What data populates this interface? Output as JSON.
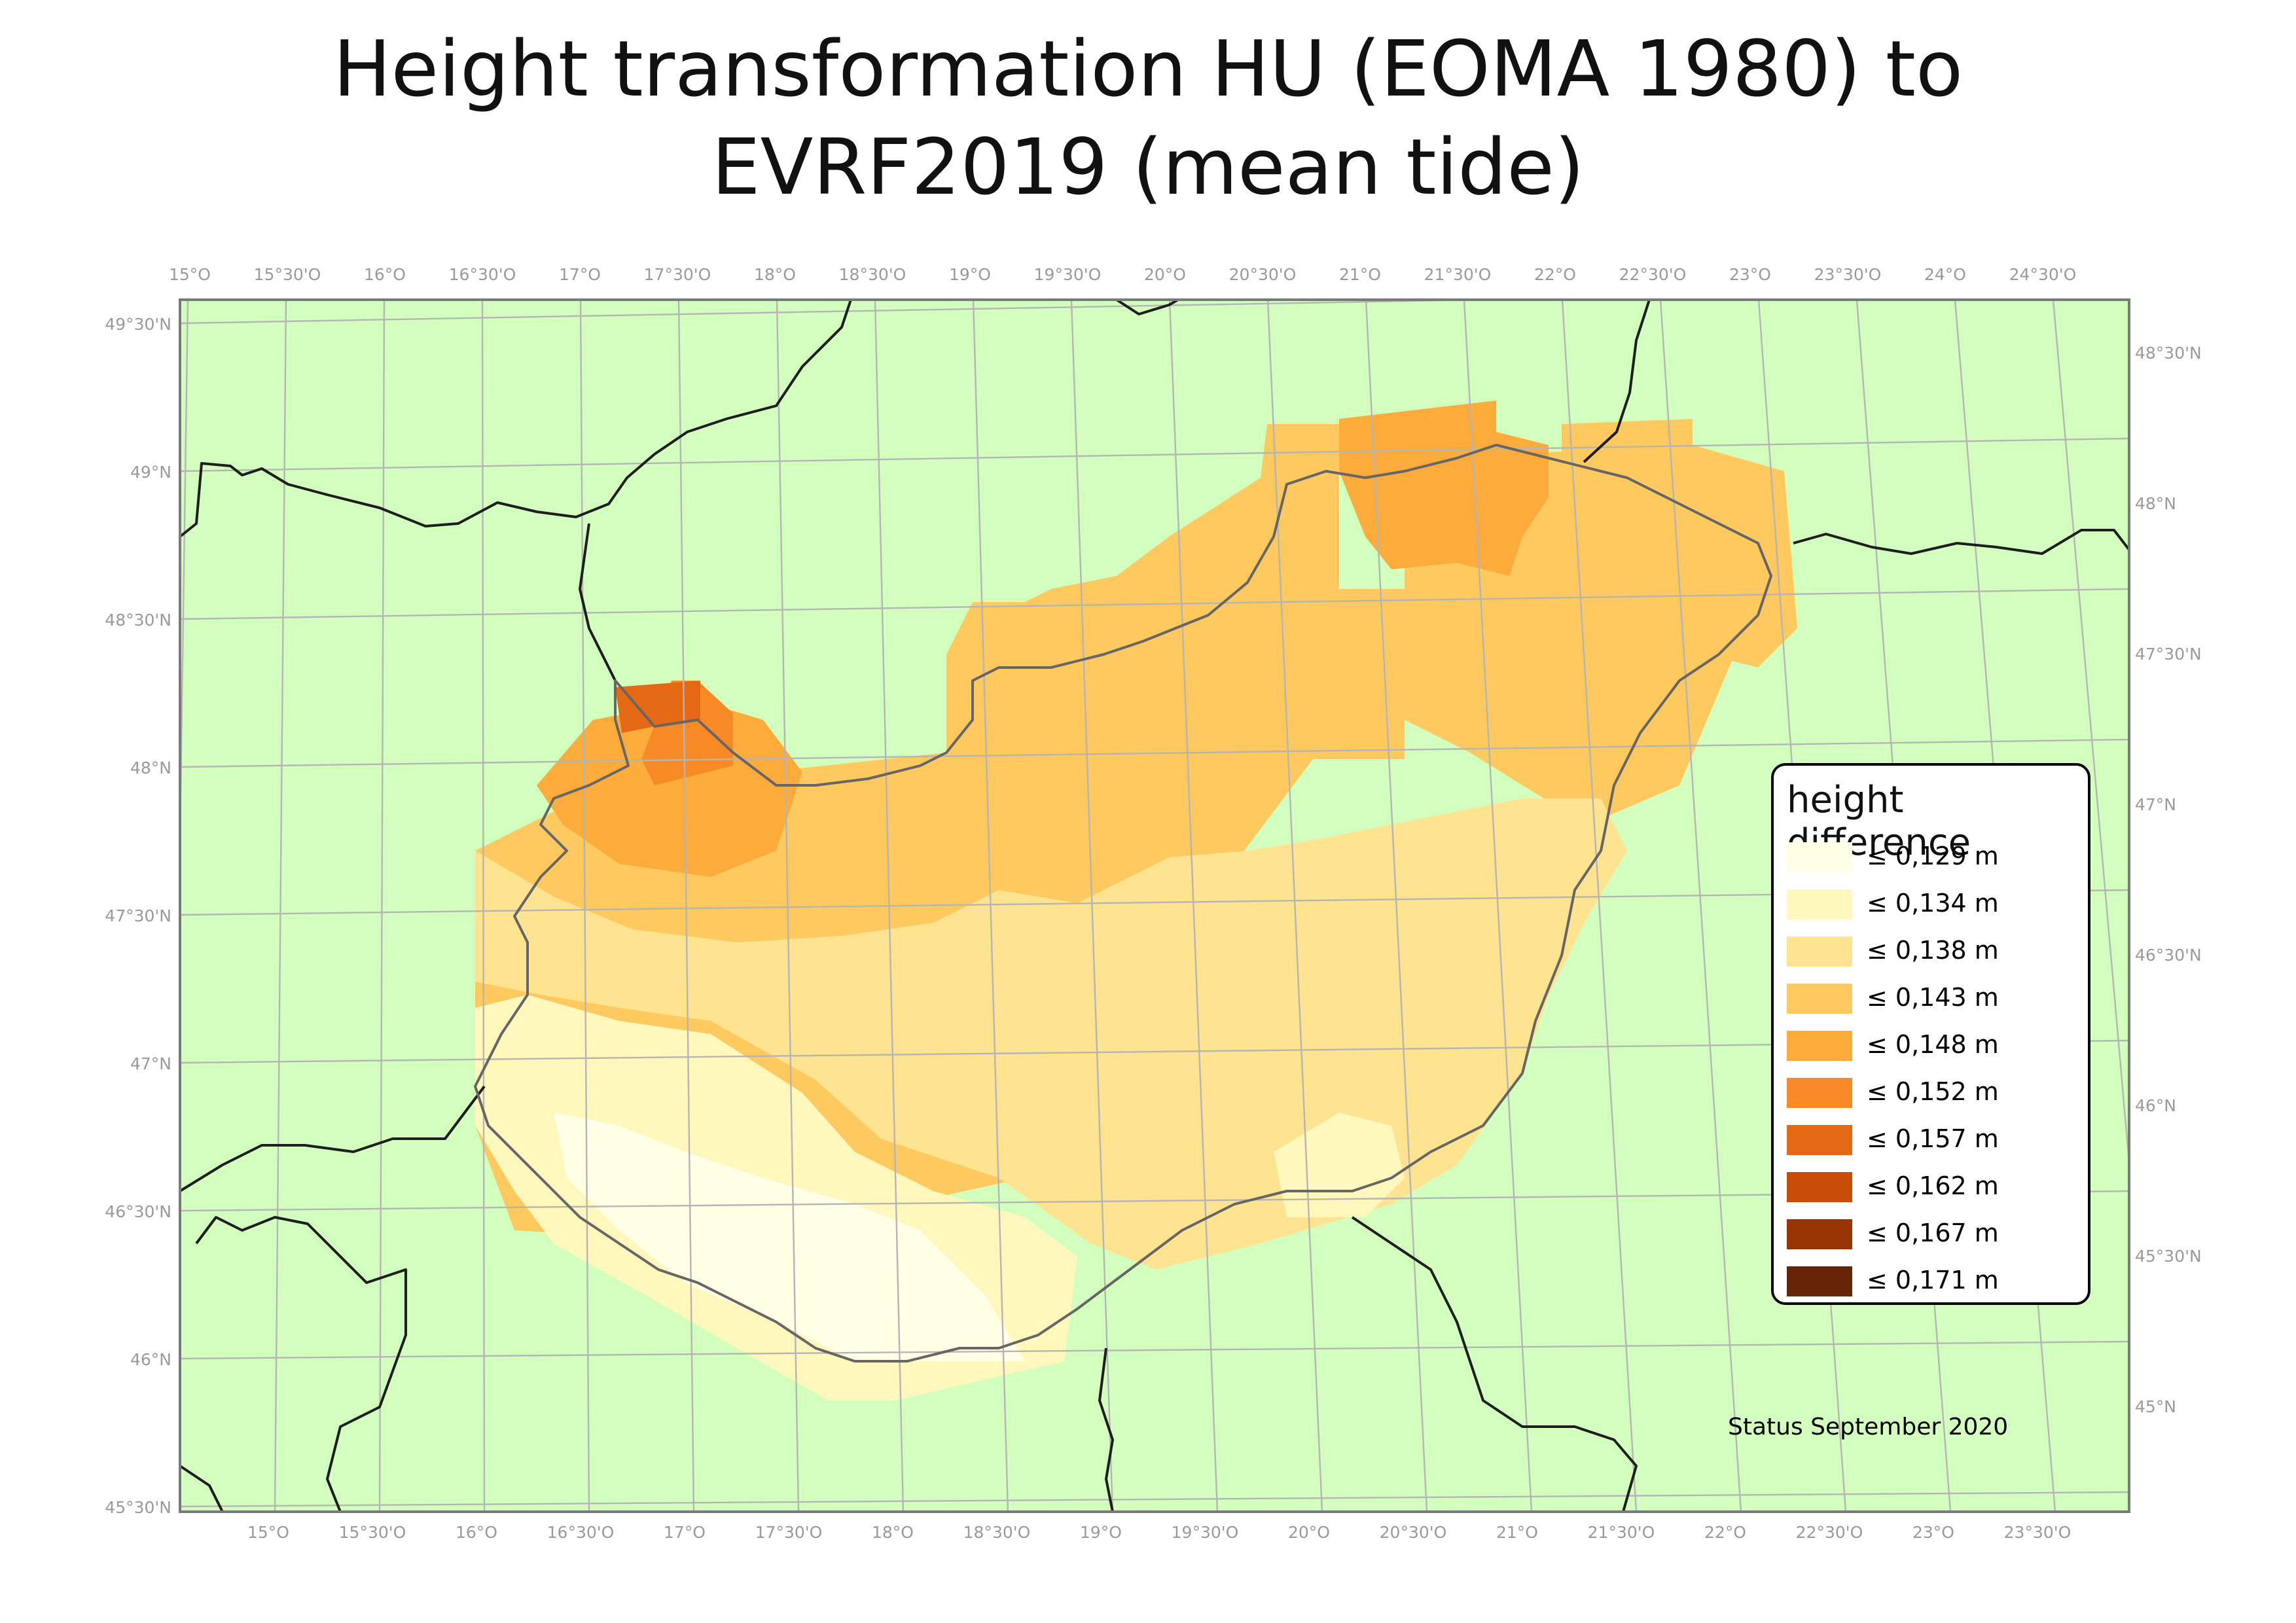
{
  "title_line1": "Height transformation HU (EOMA 1980) to",
  "title_line2": "EVRF2019 (mean tide)",
  "top_ticks": [
    "15°O",
    "15°30'O",
    "16°O",
    "16°30'O",
    "17°O",
    "17°30'O",
    "18°O",
    "18°30'O",
    "19°O",
    "19°30'O",
    "20°O",
    "20°30'O",
    "21°O",
    "21°30'O",
    "22°O",
    "22°30'O",
    "23°O",
    "23°30'O",
    "24°O",
    "24°30'O"
  ],
  "bottom_ticks": [
    "15°O",
    "15°30'O",
    "16°O",
    "16°30'O",
    "17°O",
    "17°30'O",
    "18°O",
    "18°30'O",
    "19°O",
    "19°30'O",
    "20°O",
    "20°30'O",
    "21°O",
    "21°30'O",
    "22°O",
    "22°30'O",
    "23°O",
    "23°30'O"
  ],
  "left_ticks": [
    "49°30'N",
    "49°N",
    "48°30'N",
    "48°N",
    "47°30'N",
    "47°N",
    "46°30'N",
    "46°N",
    "45°30'N"
  ],
  "right_ticks": [
    "48°30'N",
    "48°N",
    "47°30'N",
    "47°N",
    "46°30'N",
    "46°N",
    "45°30'N",
    "45°N"
  ],
  "legend": {
    "title": "height difference",
    "items": [
      {
        "label": "≤ 0,129 m",
        "color": "#ffffe5"
      },
      {
        "label": "≤ 0,134 m",
        "color": "#fff7bc"
      },
      {
        "label": "≤ 0,138 m",
        "color": "#fee391"
      },
      {
        "label": "≤ 0,143 m",
        "color": "#fec95e"
      },
      {
        "label": "≤ 0,148 m",
        "color": "#fdab3b"
      },
      {
        "label": "≤ 0,152 m",
        "color": "#f88a25"
      },
      {
        "label": "≤ 0,157 m",
        "color": "#e56914"
      },
      {
        "label": "≤ 0,162 m",
        "color": "#c74c06"
      },
      {
        "label": "≤ 0,167 m",
        "color": "#993404"
      },
      {
        "label": "≤ 0,171 m",
        "color": "#662506"
      }
    ]
  },
  "status": "Status September 2020",
  "colors": {
    "background": "#d3ffbe",
    "grid": "#b5b5b5",
    "border": "#2b2b2b",
    "hungary_border": "#666666"
  }
}
